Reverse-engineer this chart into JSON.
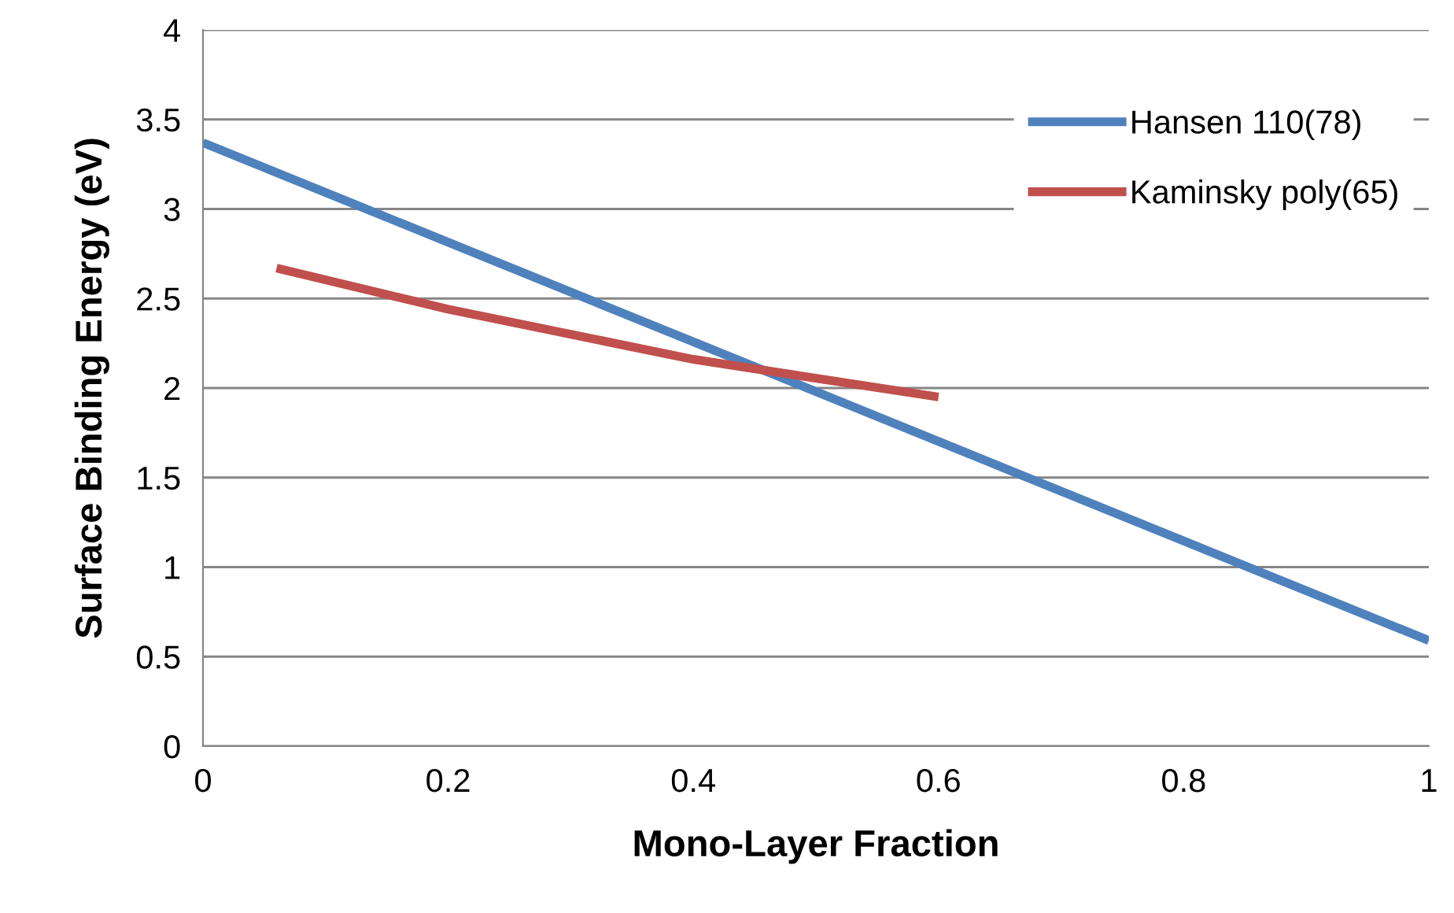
{
  "chart_data": {
    "type": "line",
    "xlabel": "Mono-Layer Fraction",
    "ylabel": "Surface Binding Energy (eV)",
    "xlim": [
      0,
      1
    ],
    "xticks": [
      0,
      0.2,
      0.4,
      0.6,
      0.8,
      1
    ],
    "ylim": [
      0,
      4
    ],
    "yticks": [
      0,
      0.5,
      1,
      1.5,
      2,
      2.5,
      3,
      3.5,
      4
    ],
    "grid": "y",
    "legend": "top right",
    "series": [
      {
        "name": "Hansen 110(78)",
        "color": "#4f81bd",
        "x": [
          0,
          1
        ],
        "values": [
          3.37,
          0.59
        ]
      },
      {
        "name": "Kaminsky poly(65)",
        "color": "#c0504d",
        "x": [
          0.06,
          0.2,
          0.4,
          0.6
        ],
        "values": [
          2.67,
          2.44,
          2.16,
          1.95
        ]
      }
    ]
  }
}
